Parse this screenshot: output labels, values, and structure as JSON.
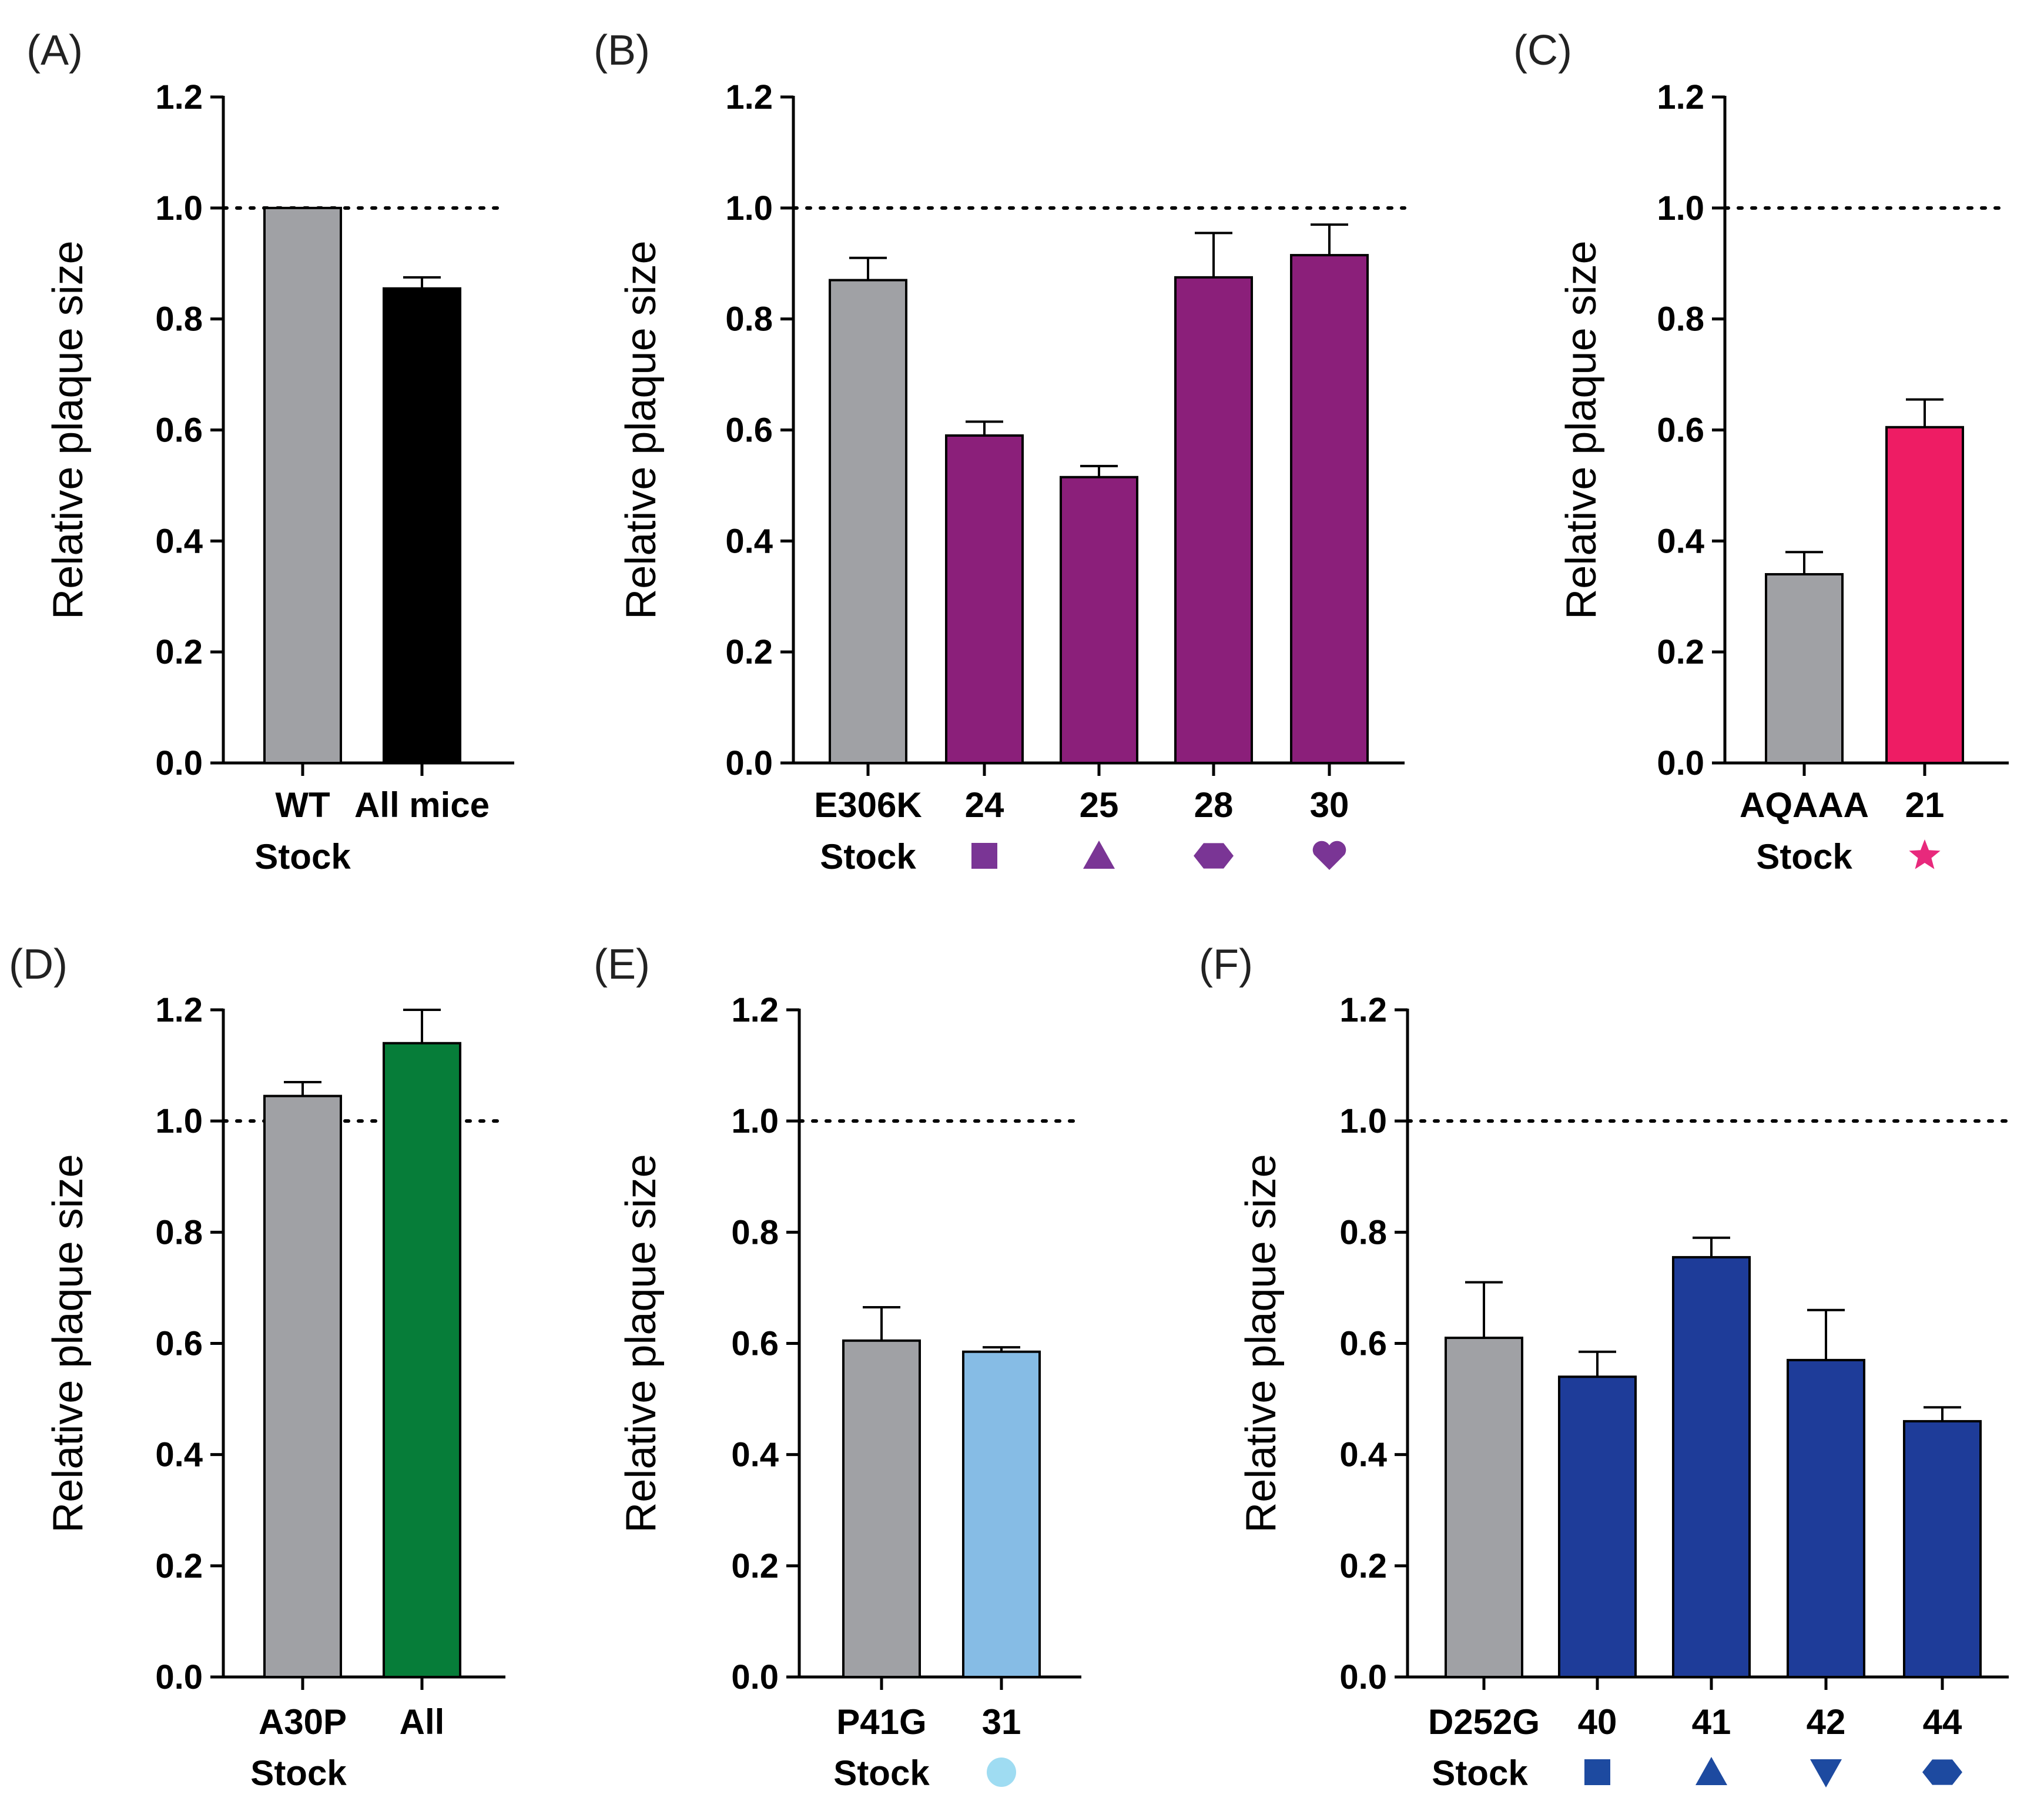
{
  "figure": {
    "panels": [
      "(A)",
      "(B)",
      "(C)",
      "(D)",
      "(E)",
      "(F)"
    ]
  },
  "colors": {
    "gray": "#a0a1a5",
    "black": "#000000",
    "purple": "#8b1f7a",
    "pink": "#ee1c64",
    "green": "#067d39",
    "light_blue": "#86bce5",
    "blue": "#1e3c99",
    "purple_marker": "#7a3595",
    "pink_marker": "#e8297c",
    "light_blue_marker": "#9fdcf2",
    "blue_marker": "#1d4aa0"
  },
  "chart_data": [
    {
      "panel": "(A)",
      "type": "bar",
      "ylabel": "Relative plaque size",
      "ylim": [
        0,
        1.2
      ],
      "yticks": [
        "0.0",
        "0.2",
        "0.4",
        "0.6",
        "0.8",
        "1.0",
        "1.2"
      ],
      "reference_line": 1.0,
      "row2_label": "Stock",
      "categories": [
        "WT",
        "All mice"
      ],
      "values": [
        1.0,
        0.855
      ],
      "errors": [
        0,
        0.02
      ],
      "bar_colors": [
        "gray",
        "black"
      ],
      "markers": [
        null,
        null
      ]
    },
    {
      "panel": "(B)",
      "type": "bar",
      "ylabel": "Relative plaque size",
      "ylim": [
        0,
        1.2
      ],
      "yticks": [
        "0.0",
        "0.2",
        "0.4",
        "0.6",
        "0.8",
        "1.0",
        "1.2"
      ],
      "reference_line": 1.0,
      "row2_label": "Stock",
      "categories": [
        "E306K",
        "24",
        "25",
        "28",
        "30"
      ],
      "values": [
        0.87,
        0.59,
        0.515,
        0.875,
        0.915
      ],
      "errors": [
        0.04,
        0.025,
        0.02,
        0.08,
        0.055
      ],
      "bar_colors": [
        "gray",
        "purple",
        "purple",
        "purple",
        "purple"
      ],
      "markers": [
        null,
        {
          "shape": "square-icon",
          "color": "purple_marker"
        },
        {
          "shape": "triangle-icon",
          "color": "purple_marker"
        },
        {
          "shape": "hexagon-icon",
          "color": "purple_marker"
        },
        {
          "shape": "heart-icon",
          "color": "purple_marker"
        }
      ]
    },
    {
      "panel": "(C)",
      "type": "bar",
      "ylabel": "Relative plaque size",
      "ylim": [
        0,
        1.2
      ],
      "yticks": [
        "0.0",
        "0.2",
        "0.4",
        "0.6",
        "0.8",
        "1.0",
        "1.2"
      ],
      "reference_line": 1.0,
      "row2_label": "Stock",
      "categories": [
        "AQAAA",
        "21"
      ],
      "values": [
        0.34,
        0.605
      ],
      "errors": [
        0.04,
        0.05
      ],
      "bar_colors": [
        "gray",
        "pink"
      ],
      "markers": [
        null,
        {
          "shape": "star-icon",
          "color": "pink_marker"
        }
      ]
    },
    {
      "panel": "(D)",
      "type": "bar",
      "ylabel": "Relative plaque size",
      "ylim": [
        0,
        1.2
      ],
      "yticks": [
        "0.0",
        "0.2",
        "0.4",
        "0.6",
        "0.8",
        "1.0",
        "1.2"
      ],
      "reference_line": 1.0,
      "row2_label": "Stock",
      "categories": [
        "A30P",
        "All"
      ],
      "values": [
        1.045,
        1.14
      ],
      "errors": [
        0.025,
        0.06
      ],
      "bar_colors": [
        "gray",
        "green"
      ],
      "markers": [
        null,
        null
      ]
    },
    {
      "panel": "(E)",
      "type": "bar",
      "ylabel": "Relative plaque size",
      "ylim": [
        0,
        1.2
      ],
      "yticks": [
        "0.0",
        "0.2",
        "0.4",
        "0.6",
        "0.8",
        "1.0",
        "1.2"
      ],
      "reference_line": 1.0,
      "row2_label": "Stock",
      "categories": [
        "P41G",
        "31"
      ],
      "values": [
        0.605,
        0.585
      ],
      "errors": [
        0.06,
        0.008
      ],
      "bar_colors": [
        "gray",
        "light_blue"
      ],
      "markers": [
        null,
        {
          "shape": "circle-icon",
          "color": "light_blue_marker"
        }
      ]
    },
    {
      "panel": "(F)",
      "type": "bar",
      "ylabel": "Relative plaque size",
      "ylim": [
        0,
        1.2
      ],
      "yticks": [
        "0.0",
        "0.2",
        "0.4",
        "0.6",
        "0.8",
        "1.0",
        "1.2"
      ],
      "reference_line": 1.0,
      "row2_label": "Stock",
      "categories": [
        "D252G",
        "40",
        "41",
        "42",
        "44"
      ],
      "values": [
        0.61,
        0.54,
        0.755,
        0.57,
        0.46
      ],
      "errors": [
        0.1,
        0.045,
        0.035,
        0.09,
        0.025
      ],
      "bar_colors": [
        "gray",
        "blue",
        "blue",
        "blue",
        "blue"
      ],
      "markers": [
        null,
        {
          "shape": "square-icon",
          "color": "blue_marker"
        },
        {
          "shape": "triangle-icon",
          "color": "blue_marker"
        },
        {
          "shape": "triangle-down-icon",
          "color": "blue_marker"
        },
        {
          "shape": "hexagon-icon",
          "color": "blue_marker"
        }
      ]
    }
  ]
}
